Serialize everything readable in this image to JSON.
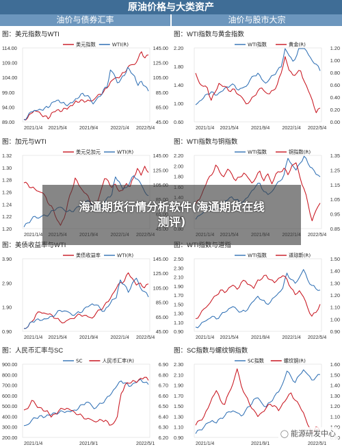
{
  "page": {
    "title": "原油价格与大类资产",
    "left_header": "油价与债券汇率",
    "right_header": "油价与股市大宗",
    "watermark_line1": "海通期货行情分析软件(海通期货在线",
    "watermark_line2": "测评)",
    "brand_text": "能源研发中心"
  },
  "chart_data": [
    {
      "id": "c1",
      "type": "line",
      "title": "图：美元指数与WTI",
      "left_axis_ticks": [
        "114.00",
        "109.00",
        "104.00",
        "99.00",
        "94.00",
        "89.00"
      ],
      "right_axis_ticks": [
        "145.00",
        "125.00",
        "105.00",
        "85.00",
        "65.00",
        "45.00"
      ],
      "x_ticks": [
        "2021/1/4",
        "2021/5/4",
        "2021/9/4",
        "2022/1/4",
        "2022/5/4"
      ],
      "series": [
        {
          "name": "美元指数",
          "axis": "left",
          "color": "#c8141e",
          "values": [
            89.9,
            90.3,
            91.7,
            93.0,
            92.3,
            91.6,
            90.8,
            90.2,
            91.8,
            92.6,
            93.0,
            92.7,
            93.5,
            94.0,
            94.5,
            96.0,
            95.8,
            96.2,
            96.1,
            95.9,
            96.5,
            97.3,
            98.5,
            99.0,
            100.5,
            102.4,
            103.5,
            104.0,
            104.5,
            105.8,
            107.2,
            108.5,
            108.2,
            110.5,
            112.5,
            110.8,
            111.5
          ]
        },
        {
          "name": "WTI(R)",
          "axis": "right",
          "color": "#2e6fb4",
          "values": [
            48,
            52,
            58,
            61,
            60,
            62,
            63,
            65,
            70,
            73,
            74,
            71,
            68,
            69,
            71,
            76,
            79,
            83,
            81,
            77,
            70,
            75,
            80,
            88,
            92,
            115,
            110,
            98,
            102,
            108,
            118,
            112,
            106,
            95,
            99,
            94,
            86
          ]
        }
      ]
    },
    {
      "id": "c2",
      "type": "line",
      "title": "图：WTI指数与黄金指数",
      "left_axis_ticks": [
        "2.20",
        "1.80",
        "1.40",
        "1.00",
        "0.60"
      ],
      "right_axis_ticks": [
        "1.20",
        "1.00",
        "0.80",
        "0.60",
        "0.40",
        "0.20",
        "0.00"
      ],
      "x_ticks": [
        "2021/1/4",
        "2021/5/4",
        "2021/9/4",
        "2022/1/4",
        "2022/5/4"
      ],
      "series": [
        {
          "name": "WTI指数",
          "axis": "left",
          "color": "#2e6fb4",
          "values": [
            0.98,
            1.04,
            1.12,
            1.2,
            1.25,
            1.18,
            1.22,
            1.28,
            1.35,
            1.4,
            1.38,
            1.3,
            1.32,
            1.38,
            1.5,
            1.6,
            1.65,
            1.52,
            1.44,
            1.52,
            1.62,
            1.7,
            1.8,
            2.18,
            2.05,
            1.9,
            2.05,
            2.3,
            2.2,
            2.05,
            1.92,
            1.85,
            1.7
          ]
        },
        {
          "name": "黄金(R)",
          "axis": "right",
          "color": "#c8141e",
          "values": [
            0.8,
            0.62,
            0.58,
            0.55,
            0.35,
            0.48,
            0.62,
            0.58,
            0.55,
            0.5,
            0.52,
            0.45,
            0.38,
            0.3,
            0.33,
            0.42,
            0.5,
            0.55,
            0.48,
            0.45,
            0.52,
            0.6,
            0.8,
            1.05,
            0.85,
            0.75,
            0.8,
            0.82,
            0.65,
            0.5,
            0.35,
            0.15,
            0.22
          ]
        }
      ]
    },
    {
      "id": "c3",
      "type": "line",
      "title": "图：加元与WTI",
      "left_axis_ticks": [
        "1.32",
        "1.30",
        "1.28",
        "1.26",
        "1.24",
        "1.22",
        "1.20"
      ],
      "right_axis_ticks": [
        "145.00",
        "125.00",
        "105.00",
        "85.00",
        "65.00",
        "45.00"
      ],
      "x_ticks": [
        "2021/1/4",
        "2021/5/4",
        "2021/9/4",
        "2022/1/4",
        "2022/5/4"
      ],
      "series": [
        {
          "name": "美元兑加元",
          "axis": "left",
          "color": "#c8141e",
          "values": [
            1.276,
            1.272,
            1.268,
            1.264,
            1.262,
            1.258,
            1.252,
            1.238,
            1.232,
            1.215,
            1.205,
            1.218,
            1.242,
            1.262,
            1.282,
            1.272,
            1.262,
            1.258,
            1.245,
            1.238,
            1.242,
            1.262,
            1.282,
            1.278,
            1.268,
            1.272,
            1.262,
            1.262,
            1.275,
            1.268,
            1.285,
            1.298,
            1.288,
            1.302,
            1.292
          ]
        },
        {
          "name": "WTI(R)",
          "axis": "right",
          "color": "#2e6fb4",
          "values": [
            48,
            52,
            58,
            61,
            60,
            62,
            63,
            65,
            70,
            73,
            74,
            71,
            68,
            69,
            71,
            76,
            79,
            83,
            81,
            77,
            70,
            75,
            80,
            88,
            92,
            115,
            110,
            98,
            102,
            108,
            118,
            112,
            106,
            95,
            90
          ]
        }
      ]
    },
    {
      "id": "c4",
      "type": "line",
      "title": "图：WTI指数与铜指数",
      "left_axis_ticks": [
        "2.20",
        "2.00",
        "1.80",
        "1.60",
        "1.40",
        "1.20",
        "1.00",
        "0.80"
      ],
      "right_axis_ticks": [
        "1.35",
        "1.25",
        "1.15",
        "1.05",
        "0.95",
        "0.85"
      ],
      "x_ticks": [
        "2021/1/4",
        "2021/5/4",
        "2021/9/4",
        "2022/1/4",
        "2022/5/4"
      ],
      "series": [
        {
          "name": "WTI指数",
          "axis": "left",
          "color": "#2e6fb4",
          "values": [
            0.98,
            1.05,
            1.12,
            1.2,
            1.22,
            1.18,
            1.24,
            1.3,
            1.36,
            1.4,
            1.36,
            1.3,
            1.33,
            1.4,
            1.52,
            1.62,
            1.66,
            1.52,
            1.44,
            1.52,
            1.62,
            1.72,
            1.82,
            2.15,
            2.02,
            1.92,
            2.05,
            2.18,
            2.05,
            1.95,
            1.85,
            1.78
          ]
        },
        {
          "name": "铜指数(R)",
          "axis": "right",
          "color": "#c8141e",
          "values": [
            1.02,
            1.05,
            1.12,
            1.18,
            1.22,
            1.28,
            1.24,
            1.2,
            1.26,
            1.22,
            1.18,
            1.2,
            1.23,
            1.2,
            1.16,
            1.2,
            1.24,
            1.18,
            1.22,
            1.16,
            1.22,
            1.24,
            1.26,
            1.22,
            1.28,
            1.3,
            1.2,
            1.12,
            1.02,
            0.9,
            0.98,
            1.02
          ]
        }
      ]
    },
    {
      "id": "c5",
      "type": "line",
      "title": "图：美债收益率与WTI",
      "left_axis_ticks": [
        "3.90",
        "2.90",
        "1.90",
        "0.90"
      ],
      "right_axis_ticks": [
        "145.00",
        "125.00",
        "105.00",
        "85.00",
        "65.00",
        "45.00"
      ],
      "x_ticks": [
        "2021/1/4",
        "2021/5/4",
        "2021/9/4",
        "2022/1/4",
        "2022/5/4"
      ],
      "series": [
        {
          "name": "美债收益率",
          "axis": "left",
          "color": "#c8141e",
          "values": [
            1.0,
            1.1,
            1.3,
            1.6,
            1.7,
            1.65,
            1.62,
            1.55,
            1.45,
            1.3,
            1.28,
            1.35,
            1.45,
            1.5,
            1.6,
            1.55,
            1.5,
            1.45,
            1.65,
            1.8,
            1.95,
            2.15,
            2.4,
            2.7,
            2.9,
            3.0,
            3.3,
            3.1,
            2.8,
            2.9,
            2.7,
            2.85
          ]
        },
        {
          "name": "WTI(R)",
          "axis": "right",
          "color": "#2e6fb4",
          "values": [
            48,
            52,
            58,
            61,
            60,
            62,
            63,
            65,
            70,
            73,
            74,
            71,
            68,
            69,
            71,
            76,
            79,
            83,
            81,
            77,
            72,
            80,
            88,
            92,
            115,
            110,
            98,
            112,
            118,
            105,
            100,
            92
          ]
        }
      ]
    },
    {
      "id": "c6",
      "type": "line",
      "title": "图：WTI指数与道指",
      "left_axis_ticks": [
        "2.50",
        "2.30",
        "2.10",
        "1.90",
        "1.70",
        "1.50",
        "1.30",
        "1.10",
        "0.90"
      ],
      "right_axis_ticks": [
        "1.50",
        "1.40",
        "1.30",
        "1.20",
        "1.10",
        "1.00",
        "0.90"
      ],
      "x_ticks": [
        "2021/1/4",
        "2021/5/4",
        "2021/9/4",
        "2022/1/4",
        "2022/5/4"
      ],
      "series": [
        {
          "name": "WTI指数",
          "axis": "left",
          "color": "#2e6fb4",
          "values": [
            0.98,
            1.04,
            1.1,
            1.18,
            1.22,
            1.18,
            1.25,
            1.32,
            1.4,
            1.44,
            1.38,
            1.32,
            1.35,
            1.45,
            1.58,
            1.66,
            1.6,
            1.5,
            1.55,
            1.65,
            1.75,
            1.85,
            2.18,
            2.05,
            1.95,
            2.1,
            2.25,
            2.05,
            1.9,
            1.85,
            1.8
          ]
        },
        {
          "name": "道琼斯(R)",
          "axis": "right",
          "color": "#c8141e",
          "values": [
            1.0,
            1.04,
            1.08,
            1.12,
            1.16,
            1.2,
            1.24,
            1.22,
            1.26,
            1.28,
            1.25,
            1.3,
            1.32,
            1.28,
            1.26,
            1.32,
            1.34,
            1.36,
            1.33,
            1.3,
            1.34,
            1.36,
            1.33,
            1.26,
            1.2,
            1.24,
            1.18,
            1.1,
            1.02,
            1.06,
            1.12
          ]
        }
      ]
    },
    {
      "id": "c7",
      "type": "line",
      "title": "图：人民币汇率与SC",
      "left_axis_ticks": [
        "900.00",
        "800.00",
        "700.00",
        "600.00",
        "500.00",
        "400.00",
        "300.00",
        "200.00"
      ],
      "right_axis_ticks": [
        "6.90",
        "6.80",
        "6.70",
        "6.60",
        "6.50",
        "6.40",
        "6.30",
        "6.20"
      ],
      "x_ticks": [
        "2021/1/4",
        "2021/9/1",
        "2022/5/1"
      ],
      "series": [
        {
          "name": "SC",
          "axis": "left",
          "color": "#2e6fb4",
          "values": [
            310,
            325,
            360,
            390,
            400,
            395,
            410,
            420,
            430,
            440,
            445,
            450,
            445,
            460,
            480,
            510,
            540,
            520,
            480,
            500,
            530,
            560,
            600,
            650,
            700,
            740,
            720,
            690,
            710,
            730,
            750,
            730,
            700
          ]
        },
        {
          "name": "人民币汇率(R)",
          "axis": "right",
          "color": "#c8141e",
          "values": [
            6.46,
            6.48,
            6.55,
            6.52,
            6.48,
            6.46,
            6.45,
            6.4,
            6.42,
            6.46,
            6.47,
            6.48,
            6.46,
            6.44,
            6.42,
            6.4,
            6.38,
            6.37,
            6.36,
            6.35,
            6.37,
            6.36,
            6.32,
            6.33,
            6.4,
            6.62,
            6.7,
            6.72,
            6.74,
            6.73,
            6.76,
            6.78,
            6.74
          ]
        }
      ]
    },
    {
      "id": "c8",
      "type": "line",
      "title": "图：SC指数与螺纹钢指数",
      "left_axis_ticks": [
        "2.30",
        "2.10",
        "1.90",
        "1.70",
        "1.50",
        "1.30",
        "1.10",
        "0.90"
      ],
      "right_axis_ticks": [
        "1.60",
        "1.50",
        "1.40",
        "1.30",
        "1.20",
        "1.10",
        "1.00",
        "0.90"
      ],
      "x_ticks": [
        "2021/1/4",
        "2021/9/1",
        "2022/5/1"
      ],
      "series": [
        {
          "name": "SC指数",
          "axis": "left",
          "color": "#2e6fb4",
          "values": [
            0.98,
            1.04,
            1.1,
            1.18,
            1.22,
            1.18,
            1.26,
            1.32,
            1.38,
            1.42,
            1.36,
            1.32,
            1.4,
            1.5,
            1.62,
            1.66,
            1.55,
            1.48,
            1.58,
            1.68,
            1.78,
            1.92,
            2.18,
            2.05,
            1.96,
            2.08,
            2.2,
            2.1,
            2.0,
            2.05,
            2.1
          ]
        },
        {
          "name": "螺纹钢(R)",
          "axis": "right",
          "color": "#c8141e",
          "values": [
            1.02,
            1.06,
            1.1,
            1.18,
            1.28,
            1.35,
            1.25,
            1.22,
            1.32,
            1.42,
            1.55,
            1.4,
            1.3,
            1.22,
            1.16,
            1.1,
            1.14,
            1.18,
            1.22,
            1.2,
            1.16,
            1.22,
            1.28,
            1.32,
            1.26,
            1.2,
            1.14,
            1.02,
            0.94,
            1.0,
            0.96
          ]
        }
      ]
    }
  ]
}
